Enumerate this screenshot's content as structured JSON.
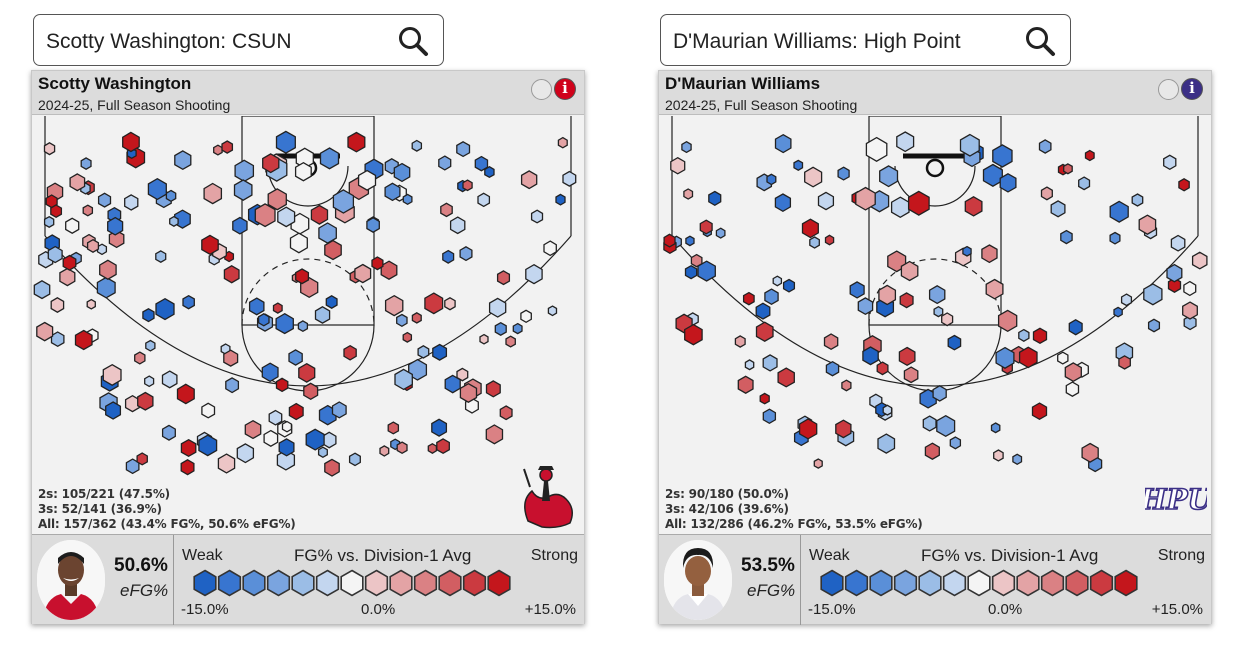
{
  "panels": [
    {
      "search": {
        "value": "Scotty Washington: CSUN",
        "icon": "search-icon"
      },
      "player_name": "Scotty Washington",
      "subtitle": "2024-25, Full Season Shooting",
      "info_color": "#d0021b",
      "stats": {
        "twos": "2s: 105/221 (47.5%)",
        "threes": "3s: 52/141 (36.9%)",
        "all": "All: 157/362 (43.4% FG%, 50.6% eFG%)"
      },
      "team_logo": "csun-matador-logo",
      "efg_value": "50.6%",
      "efg_label": "eFG%",
      "jersey_color": "#c8102e",
      "shot_count_hexes": 201
    },
    {
      "search": {
        "value": "D'Maurian Williams: High Point",
        "icon": "search-icon"
      },
      "player_name": "D'Maurian Williams",
      "subtitle": "2024-25, Full Season Shooting",
      "info_color": "#3b2f86",
      "stats": {
        "twos": "2s: 90/180 (50.0%)",
        "threes": "3s: 42/106 (39.6%)",
        "all": "All: 132/286 (46.2% FG%, 53.5% eFG%)"
      },
      "team_logo": "hpu-logo",
      "logo_text": "HPU",
      "efg_value": "53.5%",
      "efg_label": "eFG%",
      "jersey_color": "#e8e8f0",
      "shot_count_hexes": 142
    }
  ],
  "legend": {
    "weak": "Weak",
    "title": "FG% vs. Division-1 Avg",
    "strong": "Strong",
    "ticks": [
      "-15.0%",
      "0.0%",
      "+15.0%"
    ],
    "scale_colors": [
      "#1f62c4",
      "#3875d0",
      "#5a8fd8",
      "#7aa4df",
      "#9bbde6",
      "#c3d6ef",
      "#f4f4f4",
      "#ecc5c6",
      "#e3a3a5",
      "#da8184",
      "#d25e62",
      "#cb3a40",
      "#c4161c"
    ]
  },
  "colors": {
    "strong_red": "#c4161c",
    "strong_blue": "#1f62c4",
    "neutral": "#f4f4f4"
  }
}
